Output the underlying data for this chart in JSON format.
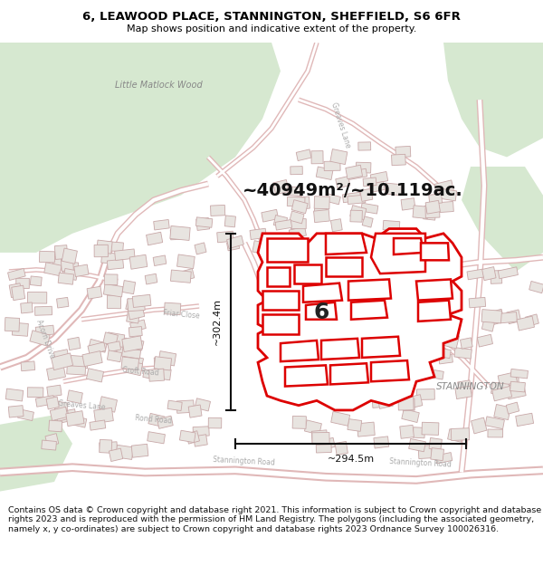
{
  "title_line1": "6, LEAWOOD PLACE, STANNINGTON, SHEFFIELD, S6 6FR",
  "title_line2": "Map shows position and indicative extent of the property.",
  "area_text": "~40949m²/~10.119ac.",
  "width_label": "~294.5m",
  "height_label": "~302.4m",
  "number_label": "6",
  "location_label": "STANNINGTON",
  "wood_label": "Little Matlock Wood",
  "copyright_text": "Contains OS data © Crown copyright and database right 2021. This information is subject to Crown copyright and database rights 2023 and is reproduced with the permission of HM Land Registry. The polygons (including the associated geometry, namely x, y co-ordinates) are subject to Crown copyright and database rights 2023 Ordnance Survey 100026316.",
  "map_bg": "#f2ede8",
  "green_color": "#d6e8d0",
  "building_face": "#e8e4e0",
  "building_edge": "#c8a8a8",
  "road_white": "#ffffff",
  "road_edge": "#e0b8b8",
  "property_red": "#dd0000",
  "property_fill": "#ffffff",
  "text_gray": "#888888",
  "title_fs": 9.5,
  "subtitle_fs": 8.0,
  "area_fs": 14,
  "annot_fs": 8,
  "footer_fs": 6.8
}
